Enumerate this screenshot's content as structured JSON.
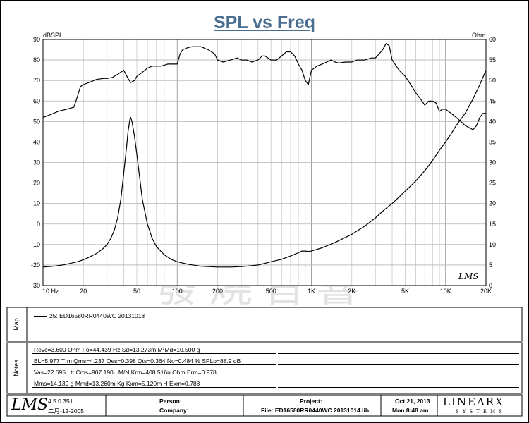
{
  "chart_data": {
    "type": "line",
    "title": "SPL vs Freq",
    "ylabel_left": "dBSPL",
    "ylabel_right": "Ohm",
    "x_scale": "log",
    "xlim": [
      10,
      20000
    ],
    "ylim_left": [
      -30,
      90
    ],
    "ylim_right": [
      0,
      60
    ],
    "x_ticks": [
      "10 Hz",
      "20",
      "50",
      "100",
      "200",
      "500",
      "1K",
      "2K",
      "5K",
      "10K",
      "20K"
    ],
    "y_ticks_left": [
      "90",
      "80",
      "70",
      "60",
      "50",
      "40",
      "30",
      "20",
      "10",
      "0",
      "-10",
      "-20",
      "-30"
    ],
    "y_ticks_right": [
      "60",
      "55",
      "50",
      "45",
      "40",
      "35",
      "30",
      "25",
      "20",
      "15",
      "10",
      "5",
      "0"
    ],
    "grid": true,
    "series": [
      {
        "axis": "left",
        "x": [
          10,
          11,
          12,
          13,
          14,
          15,
          16,
          17,
          18,
          19,
          20,
          22,
          25,
          28,
          30,
          33,
          36,
          40,
          43,
          45,
          48,
          50,
          55,
          60,
          65,
          70,
          75,
          80,
          85,
          90,
          95,
          100,
          105,
          110,
          120,
          130,
          140,
          150,
          170,
          190,
          200,
          220,
          250,
          280,
          300,
          330,
          360,
          400,
          430,
          450,
          500,
          550,
          600,
          650,
          700,
          750,
          800,
          850,
          900,
          950,
          1000,
          1050,
          1100,
          1200,
          1300,
          1400,
          1500,
          1600,
          1800,
          2000,
          2200,
          2500,
          2800,
          3000,
          3200,
          3400,
          3600,
          3800,
          4000,
          4500,
          5000,
          5500,
          6000,
          6500,
          7000,
          7500,
          8000,
          8500,
          9000,
          9500,
          10000,
          11000,
          12000,
          13000,
          14000,
          15000,
          16000,
          17000,
          18000,
          19000,
          20000
        ],
        "values": [
          52,
          53,
          54,
          55,
          55.5,
          56,
          56.5,
          57,
          62,
          67,
          68,
          69,
          70.5,
          71,
          71,
          71.5,
          73,
          75,
          71,
          69,
          70,
          72,
          74,
          76,
          77,
          77,
          77,
          77.5,
          78,
          78,
          78,
          78,
          83,
          85,
          86,
          86.5,
          86.5,
          86.5,
          85,
          83,
          80,
          79,
          80,
          81,
          80,
          80,
          79,
          80,
          82,
          82,
          80,
          80,
          82,
          84,
          84,
          82,
          78,
          75,
          70,
          68,
          75,
          76,
          77,
          78,
          79,
          80,
          79,
          78.5,
          79,
          79,
          80,
          80,
          81,
          81,
          83,
          85,
          88,
          87,
          80,
          75,
          72,
          68,
          64,
          61,
          58,
          60,
          60,
          59,
          55,
          56,
          56,
          54,
          52,
          50,
          48,
          47,
          46,
          48,
          52,
          54,
          54
        ]
      },
      {
        "axis": "right",
        "x": [
          10,
          12,
          14,
          16,
          18,
          20,
          22,
          25,
          28,
          30,
          32,
          34,
          36,
          38,
          40,
          42,
          43,
          44.4,
          45,
          46,
          48,
          50,
          52,
          55,
          60,
          65,
          70,
          80,
          90,
          100,
          120,
          150,
          200,
          250,
          300,
          350,
          400,
          450,
          500,
          600,
          700,
          800,
          850,
          900,
          950,
          1000,
          1200,
          1500,
          2000,
          2500,
          3000,
          3500,
          4000,
          5000,
          6000,
          7000,
          8000,
          9000,
          10000,
          11000,
          12000,
          14000,
          16000,
          18000,
          20000
        ],
        "values": [
          4.5,
          4.7,
          5.0,
          5.4,
          5.8,
          6.3,
          6.9,
          7.8,
          9.0,
          10.0,
          11.5,
          13.5,
          16.5,
          21.0,
          27.5,
          34.0,
          37.5,
          40.5,
          41.0,
          40.0,
          36.5,
          32.0,
          27.5,
          21.0,
          15.0,
          11.5,
          9.5,
          7.5,
          6.4,
          5.8,
          5.2,
          4.7,
          4.5,
          4.5,
          4.6,
          4.8,
          5.0,
          5.4,
          5.8,
          6.4,
          7.2,
          8.0,
          8.4,
          8.4,
          8.3,
          8.4,
          9.2,
          10.5,
          12.5,
          14.5,
          16.5,
          18.5,
          20.0,
          23.0,
          25.5,
          28.0,
          30.5,
          33.0,
          35.0,
          37.0,
          39.0,
          42.0,
          45.5,
          49.0,
          52.5
        ]
      }
    ]
  },
  "side_labels": {
    "map": "Map",
    "notes": "Notes"
  },
  "legend": {
    "entry": "25: ED16580RR0440WC  20131018"
  },
  "notes": [
    "Revc=3.600 Ohm  Fo=44.439 Hz  Sd=13.273m M²Md=10.500 g",
    "BL=5.977 T·m  Qms=4.237  Qes=0.398  Qts=0.364  No=0.484 %  SPLo=88.9 dB",
    "Vas=22.695 Ltr  Cms=907.190u M/N  Krm=408.516u Ohm  Erm=0.978",
    "Mms=14.139 g  Mmd=13.260m Kg  Kxm=5.120m H  Exm=0.788"
  ],
  "footer": {
    "logo": "LMS",
    "version": "4.5.0.351",
    "build_date": "二月-12-2005",
    "person": "Person:",
    "company": "Company:",
    "project": "Project:",
    "file": "File: ED16580RR0440WC 20131014.lib",
    "date": "Oct 21, 2013",
    "time": "Mon  8:48 am",
    "brand": "LINEARX",
    "brand_sub": "SYSTEMS"
  },
  "plot_watermark": "LMS",
  "watermark": "發燒音響"
}
